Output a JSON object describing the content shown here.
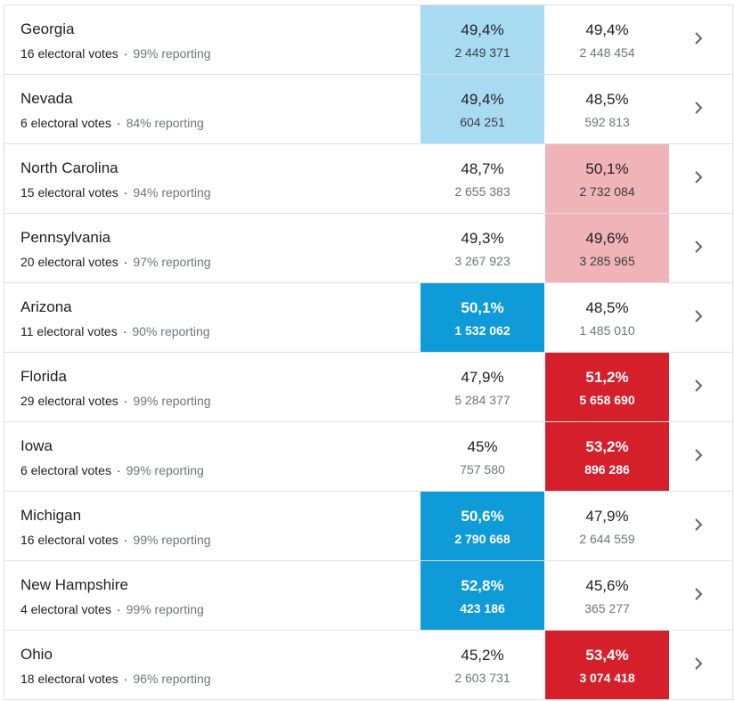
{
  "rows": [
    {
      "state": "Georgia",
      "votes": "16 electoral votes",
      "reporting": "99% reporting",
      "dem_pct": "49,4%",
      "dem_count": "2 449 371",
      "rep_pct": "49,4%",
      "rep_count": "2 448 454",
      "dem_fill": "fill-light-blue",
      "rep_fill": ""
    },
    {
      "state": "Nevada",
      "votes": "6 electoral votes",
      "reporting": "84% reporting",
      "dem_pct": "49,4%",
      "dem_count": "604 251",
      "rep_pct": "48,5%",
      "rep_count": "592 813",
      "dem_fill": "fill-light-blue",
      "rep_fill": ""
    },
    {
      "state": "North Carolina",
      "votes": "15 electoral votes",
      "reporting": "94% reporting",
      "dem_pct": "48,7%",
      "dem_count": "2 655 383",
      "rep_pct": "50,1%",
      "rep_count": "2 732 084",
      "dem_fill": "",
      "rep_fill": "fill-light-red"
    },
    {
      "state": "Pennsylvania",
      "votes": "20 electoral votes",
      "reporting": "97% reporting",
      "dem_pct": "49,3%",
      "dem_count": "3 267 923",
      "rep_pct": "49,6%",
      "rep_count": "3 285 965",
      "dem_fill": "",
      "rep_fill": "fill-light-red"
    },
    {
      "state": "Arizona",
      "votes": "11 electoral votes",
      "reporting": "90% reporting",
      "dem_pct": "50,1%",
      "dem_count": "1 532 062",
      "rep_pct": "48,5%",
      "rep_count": "1 485 010",
      "dem_fill": "fill-blue",
      "rep_fill": ""
    },
    {
      "state": "Florida",
      "votes": "29 electoral votes",
      "reporting": "99% reporting",
      "dem_pct": "47,9%",
      "dem_count": "5 284 377",
      "rep_pct": "51,2%",
      "rep_count": "5 658 690",
      "dem_fill": "",
      "rep_fill": "fill-red"
    },
    {
      "state": "Iowa",
      "votes": "6 electoral votes",
      "reporting": "99% reporting",
      "dem_pct": "45%",
      "dem_count": "757 580",
      "rep_pct": "53,2%",
      "rep_count": "896 286",
      "dem_fill": "",
      "rep_fill": "fill-red"
    },
    {
      "state": "Michigan",
      "votes": "16 electoral votes",
      "reporting": "99% reporting",
      "dem_pct": "50,6%",
      "dem_count": "2 790 668",
      "rep_pct": "47,9%",
      "rep_count": "2 644 559",
      "dem_fill": "fill-blue",
      "rep_fill": ""
    },
    {
      "state": "New Hampshire",
      "votes": "4 electoral votes",
      "reporting": "99% reporting",
      "dem_pct": "52,8%",
      "dem_count": "423 186",
      "rep_pct": "45,6%",
      "rep_count": "365 277",
      "dem_fill": "fill-blue",
      "rep_fill": ""
    },
    {
      "state": "Ohio",
      "votes": "18 electoral votes",
      "reporting": "96% reporting",
      "dem_pct": "45,2%",
      "dem_count": "2 603 731",
      "rep_pct": "53,4%",
      "rep_count": "3 074 418",
      "dem_fill": "",
      "rep_fill": "fill-red"
    }
  ],
  "separator": "·",
  "icons": {
    "row_chevron": "chevron-right-icon"
  },
  "colors": {
    "dem_lead_light": "#a8dbf2",
    "rep_lead_light": "#f0b3b8",
    "dem_called": "#0f9ad8",
    "rep_called": "#d51f2b"
  }
}
